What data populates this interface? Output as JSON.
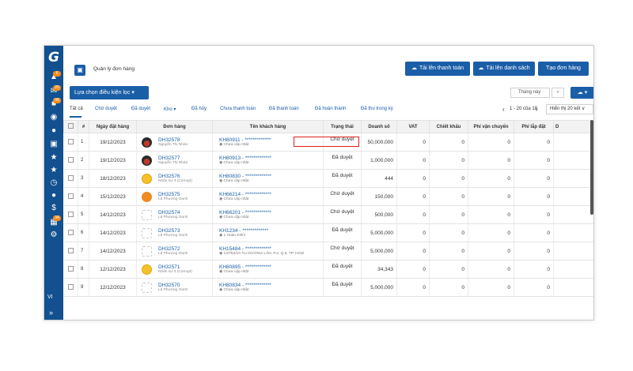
{
  "app": {
    "logo": "G",
    "sidebar": {
      "badges": [
        "6",
        "20",
        "98",
        "34"
      ],
      "language": "VI",
      "collapse_label": "»"
    }
  },
  "header": {
    "title": "Quản lý đơn hàng",
    "buttons": {
      "upload_payment": "Tải lên thanh toán",
      "upload_list": "Tải lên danh sách",
      "create_order": "Tạo đơn hàng"
    }
  },
  "filter": {
    "button_label": "Lựa chọn điều kiện lọc",
    "month_selected": "Tháng này"
  },
  "tabs": [
    {
      "label": "Tất cả",
      "active": true
    },
    {
      "label": "Chờ duyệt"
    },
    {
      "label": "Đã duyệt"
    },
    {
      "label": "Kho ▾"
    },
    {
      "label": "Đã hủy"
    },
    {
      "label": "Chưa thanh toán"
    },
    {
      "label": "Đã thanh toán"
    },
    {
      "label": "Đã hoàn thành"
    },
    {
      "label": "Đã thu trong kỳ"
    }
  ],
  "pagination": {
    "range": "1 - 20 của 18",
    "per_page": "Hiển thị 20 kết"
  },
  "table": {
    "columns": [
      "#",
      "Ngày đặt hàng",
      "Đơn hàng",
      "Tên khách hàng",
      "Trạng thái",
      "Doanh số",
      "VAT",
      "Chiết khấu",
      "Phí vận chuyển",
      "Phí lắp đặt",
      "D"
    ],
    "rows": [
      {
        "num": "1",
        "date": "19/12/2023",
        "order": "DH32578",
        "staff": "Nguyễn Thị Nhàn",
        "avatar": "car",
        "customer": "KH80911 - *************",
        "address": "Chưa cập nhật",
        "status": "Chờ duyệt",
        "revenue": "50,000,000",
        "vat": "0",
        "discount": "0",
        "shipping": "0",
        "install": "0"
      },
      {
        "num": "2",
        "date": "19/12/2023",
        "order": "DH32577",
        "staff": "Nguyễn Thị Nhàn",
        "avatar": "car",
        "customer": "KH80913 - *************",
        "address": "Chưa cập nhật",
        "status": "Đã duyệt",
        "revenue": "1,000,000",
        "vat": "0",
        "discount": "0",
        "shipping": "0",
        "install": "0"
      },
      {
        "num": "3",
        "date": "18/12/2023",
        "order": "DH32576",
        "staff": "Nhân sự 3 (Corrupt)",
        "avatar": "smile",
        "customer": "KH80830 - *************",
        "address": "Chưa cập nhật",
        "status": "Đã duyệt",
        "revenue": "444",
        "vat": "0",
        "discount": "0",
        "shipping": "0",
        "install": "0"
      },
      {
        "num": "4",
        "date": "15/12/2023",
        "order": "DH32575",
        "staff": "Lã Phương Oanh",
        "avatar": "orange",
        "customer": "KH66214 - *************",
        "address": "Chưa cập nhật",
        "status": "Chờ duyệt",
        "revenue": "150,000",
        "vat": "0",
        "discount": "0",
        "shipping": "0",
        "install": "0"
      },
      {
        "num": "5",
        "date": "14/12/2023",
        "order": "DH32574",
        "staff": "Lã Phương Oanh",
        "avatar": "placeholder",
        "customer": "KH66201 - *************",
        "address": "Chưa cập nhật",
        "status": "Chờ duyệt",
        "revenue": "500,000",
        "vat": "0",
        "discount": "0",
        "shipping": "0",
        "install": "0"
      },
      {
        "num": "6",
        "date": "14/12/2023",
        "order": "DH32573",
        "staff": "Lã Phương Oanh",
        "avatar": "placeholder",
        "customer": "KH1234 - *************",
        "address": "1 Hoàn Kiếm",
        "status": "Đã duyệt",
        "revenue": "5,000,000",
        "vat": "0",
        "discount": "0",
        "shipping": "0",
        "install": "0"
      },
      {
        "num": "7",
        "date": "14/12/2023",
        "order": "DH32572",
        "staff": "Lã Phương Oanh",
        "avatar": "placeholder",
        "customer": "KH15484 - *************",
        "address": "137/54/10 ÂU DƯƠNG LÂN, P.2, Q.8, TP. HCM",
        "status": "Chờ duyệt",
        "revenue": "5,000,000",
        "vat": "0",
        "discount": "0",
        "shipping": "0",
        "install": "0"
      },
      {
        "num": "8",
        "date": "12/12/2023",
        "order": "DH32571",
        "staff": "Nhân sự 3 (Corrupt)",
        "avatar": "smile",
        "customer": "KH80895 - *************",
        "address": "Chưa cập nhật",
        "status": "Đã duyệt",
        "revenue": "34,343",
        "vat": "0",
        "discount": "0",
        "shipping": "0",
        "install": "0"
      },
      {
        "num": "9",
        "date": "12/12/2023",
        "order": "DH32570",
        "staff": "Lã Phương Oanh",
        "avatar": "placeholder",
        "customer": "KH80834 - *************",
        "address": "Chưa cập nhật",
        "status": "Đã duyệt",
        "revenue": "5,000,000",
        "vat": "0",
        "discount": "0",
        "shipping": "0",
        "install": "0"
      }
    ]
  },
  "colors": {
    "primary": "#1a5ea8",
    "sidebar": "#12508f",
    "badge": "#f28a1b",
    "highlight": "#e02020"
  }
}
